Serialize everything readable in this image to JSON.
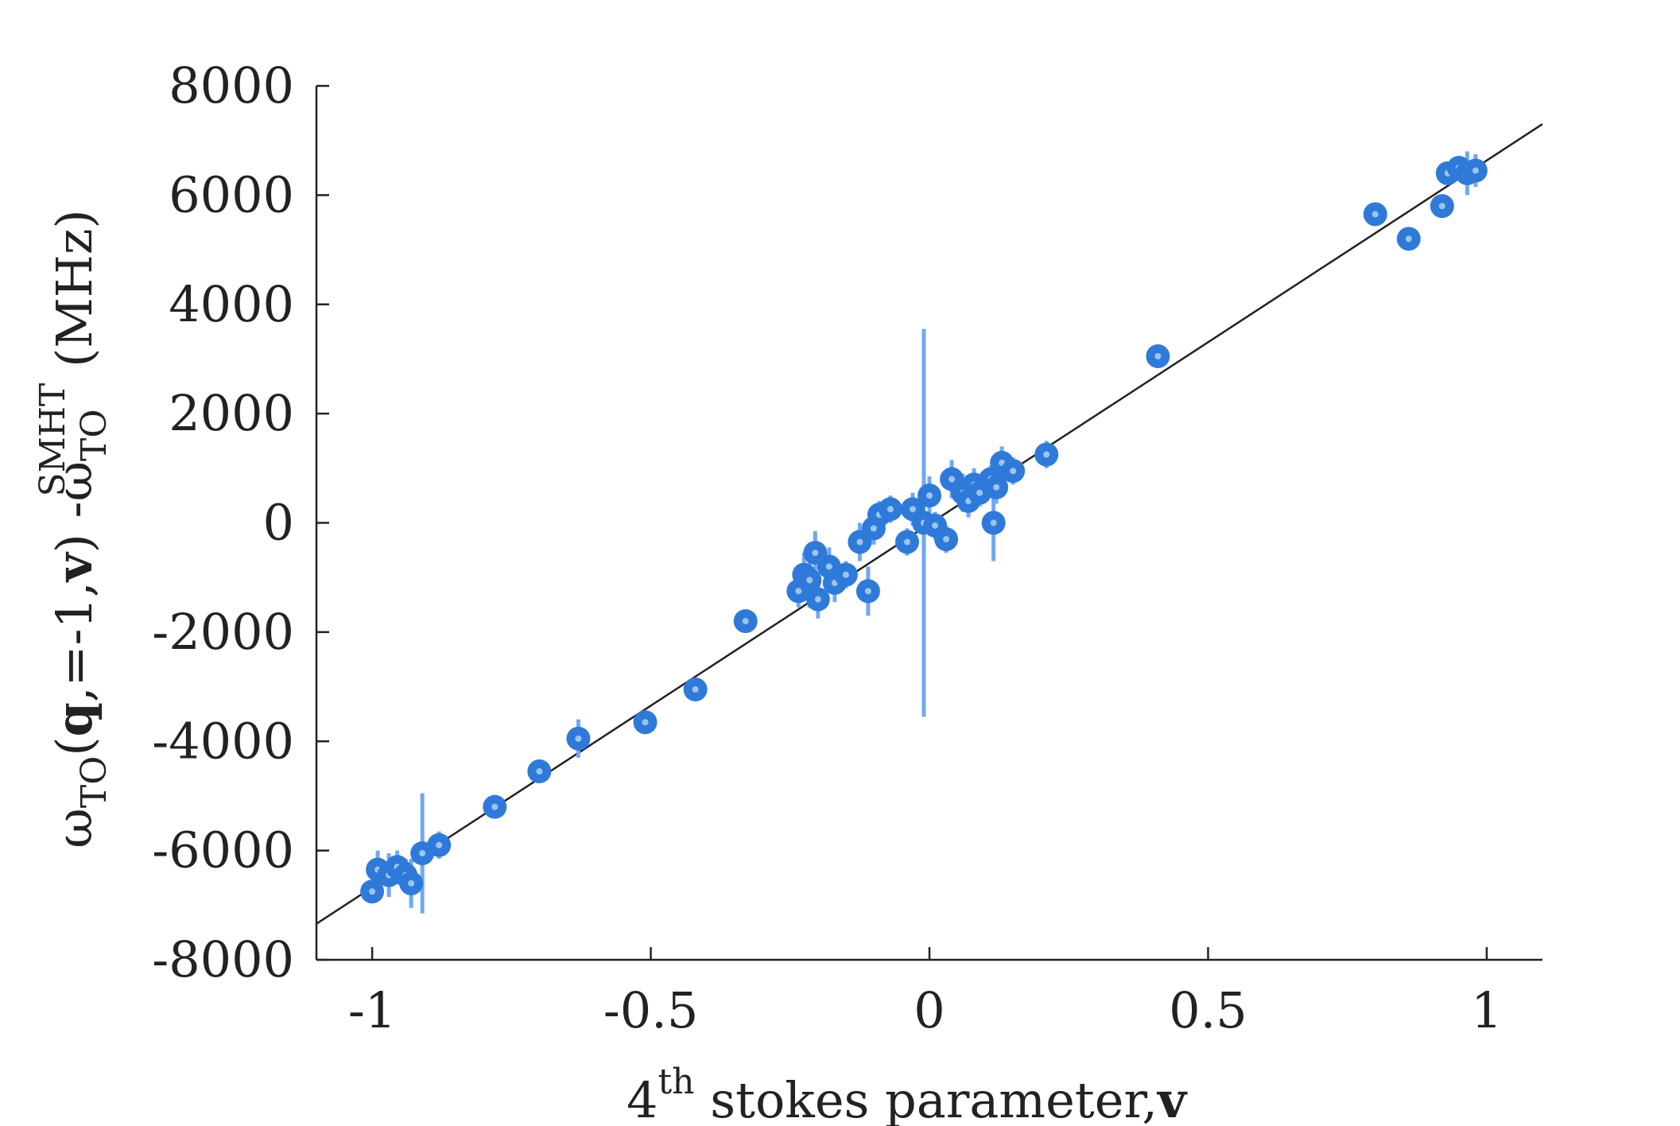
{
  "chart_data": {
    "type": "scatter",
    "xlabel": {
      "prefix": "4",
      "sup": "th",
      "main": " stokes parameter,",
      "bold": "v"
    },
    "ylabel": {
      "omega1": "ω",
      "sub1": "TO",
      "paren_open": "(",
      "bold_q": "q",
      "comma_eq": ",=-1,",
      "bold_v": "v",
      "paren_close": ")",
      "minus": " -",
      "omega2": "ω",
      "sub2": "TO",
      "sup2": "SMHT",
      "unit": " (MHz)"
    },
    "xlim": [
      -1.1,
      1.1
    ],
    "ylim": [
      -8000,
      8000
    ],
    "xticks": [
      -1,
      -0.5,
      0,
      0.5,
      1
    ],
    "xtick_labels": [
      "-1",
      "-0.5",
      "0",
      "0.5",
      "1"
    ],
    "yticks": [
      8000,
      6000,
      4000,
      2000,
      0,
      -2000,
      -4000,
      -6000,
      -8000
    ],
    "ytick_labels": [
      "8000",
      "6000",
      "4000",
      "2000",
      "0",
      "-2000",
      "-4000",
      "-6000",
      "-8000"
    ],
    "grid": false,
    "colors": {
      "point": "#2f7ad9",
      "point_center": "#9cc4f0",
      "errorbar": "#6fa8f2",
      "fit_line": "#222222",
      "axis": "#222222"
    },
    "fit_line": {
      "x": [
        -1.1,
        1.1
      ],
      "y": [
        -7340,
        7300
      ]
    },
    "series": [
      {
        "points": [
          {
            "x": -1.0,
            "y": -6750,
            "err": 150
          },
          {
            "x": -0.99,
            "y": -6350,
            "err": 350
          },
          {
            "x": -0.97,
            "y": -6450,
            "err": 400
          },
          {
            "x": -0.955,
            "y": -6300,
            "err": 300
          },
          {
            "x": -0.94,
            "y": -6450,
            "err": 300
          },
          {
            "x": -0.93,
            "y": -6600,
            "err": 450
          },
          {
            "x": -0.91,
            "y": -6050,
            "err": 1100
          },
          {
            "x": -0.88,
            "y": -5900,
            "err": 250
          },
          {
            "x": -0.78,
            "y": -5200,
            "err": 150
          },
          {
            "x": -0.7,
            "y": -4550,
            "err": 150
          },
          {
            "x": -0.63,
            "y": -3950,
            "err": 350
          },
          {
            "x": -0.51,
            "y": -3650,
            "err": 150
          },
          {
            "x": -0.42,
            "y": -3050,
            "err": 150
          },
          {
            "x": -0.33,
            "y": -1800,
            "err": 150
          },
          {
            "x": -0.235,
            "y": -1250,
            "err": 300
          },
          {
            "x": -0.225,
            "y": -950,
            "err": 400
          },
          {
            "x": -0.215,
            "y": -1050,
            "err": 500
          },
          {
            "x": -0.205,
            "y": -550,
            "err": 400
          },
          {
            "x": -0.2,
            "y": -1400,
            "err": 350
          },
          {
            "x": -0.18,
            "y": -800,
            "err": 350
          },
          {
            "x": -0.17,
            "y": -1100,
            "err": 350
          },
          {
            "x": -0.15,
            "y": -950,
            "err": 250
          },
          {
            "x": -0.125,
            "y": -350,
            "err": 350
          },
          {
            "x": -0.11,
            "y": -1250,
            "err": 450
          },
          {
            "x": -0.1,
            "y": -100,
            "err": 300
          },
          {
            "x": -0.09,
            "y": 150,
            "err": 250
          },
          {
            "x": -0.07,
            "y": 250,
            "err": 250
          },
          {
            "x": -0.04,
            "y": -350,
            "err": 250
          },
          {
            "x": -0.03,
            "y": 250,
            "err": 300
          },
          {
            "x": -0.01,
            "y": 0,
            "err": 3550
          },
          {
            "x": 0.0,
            "y": 500,
            "err": 350
          },
          {
            "x": 0.01,
            "y": -50,
            "err": 250
          },
          {
            "x": 0.03,
            "y": -300,
            "err": 250
          },
          {
            "x": 0.04,
            "y": 800,
            "err": 350
          },
          {
            "x": 0.06,
            "y": 550,
            "err": 350
          },
          {
            "x": 0.07,
            "y": 400,
            "err": 300
          },
          {
            "x": 0.08,
            "y": 700,
            "err": 300
          },
          {
            "x": 0.09,
            "y": 550,
            "err": 250
          },
          {
            "x": 0.11,
            "y": 800,
            "err": 250
          },
          {
            "x": 0.115,
            "y": 0,
            "err": 700
          },
          {
            "x": 0.12,
            "y": 650,
            "err": 300
          },
          {
            "x": 0.13,
            "y": 1100,
            "err": 300
          },
          {
            "x": 0.15,
            "y": 950,
            "err": 250
          },
          {
            "x": 0.21,
            "y": 1250,
            "err": 250
          },
          {
            "x": 0.41,
            "y": 3050,
            "err": 150
          },
          {
            "x": 0.8,
            "y": 5650,
            "err": 150
          },
          {
            "x": 0.86,
            "y": 5200,
            "err": 200
          },
          {
            "x": 0.92,
            "y": 5800,
            "err": 150
          },
          {
            "x": 0.93,
            "y": 6400,
            "err": 200
          },
          {
            "x": 0.95,
            "y": 6500,
            "err": 200
          },
          {
            "x": 0.965,
            "y": 6400,
            "err": 400
          },
          {
            "x": 0.98,
            "y": 6450,
            "err": 300
          }
        ]
      }
    ]
  }
}
